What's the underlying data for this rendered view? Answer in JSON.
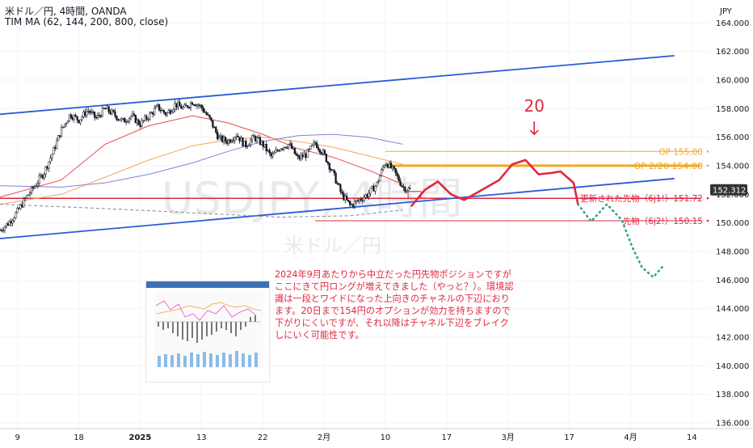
{
  "header": {
    "line1": "米ドル／円, 4時間, OANDA",
    "line2": "TIM MA (62, 144, 200, 800, close)"
  },
  "currency": "JPY",
  "watermark": {
    "symbol": "USDJPY, 4時間",
    "name": "米ドル／円"
  },
  "annotation_number": "20",
  "note_text": "2024年9月あたりから中立だった円先物ポジションですがここにきて円ロングが増えてきました（やっと？）。環境認識は一段とワイドになった上向きのチャネルの下辺におります。20日まで154円のオプションが効力を持ちますので下がりにくいですが、それ以降はチャネル下辺をブレイクしにいく可能性です。",
  "colors": {
    "candle": "#131722",
    "channel": "#2a5bd7",
    "red_line": "#e0293e",
    "orange_line": "#f5a623",
    "ma62": "#e84a4a",
    "ma144": "#f6a55a",
    "ma200": "#8a7ee0",
    "ma800": "#888888",
    "forecast_red": "#e0293e",
    "forecast_green": "#2aa584",
    "current_price_bg": "#333333"
  },
  "chart_data": {
    "type": "candlestick",
    "title": "米ドル／円, 4時間, OANDA",
    "ylim": [
      135.6,
      165.6
    ],
    "y_ticks": [
      "164.000",
      "162.000",
      "160.000",
      "158.000",
      "156.000",
      "154.000",
      "152.000",
      "150.000",
      "148.000",
      "146.000",
      "144.000",
      "142.000",
      "140.000",
      "138.000",
      "136.000"
    ],
    "x_ticks": [
      "9",
      "18",
      "2025",
      "13",
      "22",
      "2月",
      "10",
      "17",
      "3月",
      "17",
      "4月",
      "14"
    ],
    "x_tick_pos": [
      0,
      7,
      14,
      21,
      28,
      35,
      42,
      49,
      56,
      63,
      70,
      77
    ],
    "x_range": [
      -2,
      79
    ],
    "price_path": [
      [
        -2,
        149.5
      ],
      [
        -1,
        150.0
      ],
      [
        0,
        150.8
      ],
      [
        1,
        151.8
      ],
      [
        2,
        152.6
      ],
      [
        3,
        153.5
      ],
      [
        4,
        154.9
      ],
      [
        5,
        156.5
      ],
      [
        6,
        157.6
      ],
      [
        7,
        157.2
      ],
      [
        8,
        157.9
      ],
      [
        9,
        157.3
      ],
      [
        10,
        158.0
      ],
      [
        11,
        157.6
      ],
      [
        12,
        157.1
      ],
      [
        13,
        157.5
      ],
      [
        14,
        156.9
      ],
      [
        15,
        157.5
      ],
      [
        16,
        158.1
      ],
      [
        17,
        157.6
      ],
      [
        18,
        158.3
      ],
      [
        19,
        158.0
      ],
      [
        20,
        158.5
      ],
      [
        21,
        158.1
      ],
      [
        22,
        157.2
      ],
      [
        23,
        155.9
      ],
      [
        24,
        155.7
      ],
      [
        25,
        156.2
      ],
      [
        26,
        155.4
      ],
      [
        27,
        156.0
      ],
      [
        28,
        155.5
      ],
      [
        29,
        154.6
      ],
      [
        30,
        155.3
      ],
      [
        31,
        155.5
      ],
      [
        32,
        154.5
      ],
      [
        33,
        154.8
      ],
      [
        34,
        155.6
      ],
      [
        35,
        154.8
      ],
      [
        36,
        153.5
      ],
      [
        37,
        152.0
      ],
      [
        38,
        151.2
      ],
      [
        39,
        151.6
      ],
      [
        40,
        152.0
      ],
      [
        41,
        152.7
      ],
      [
        42,
        154.3
      ],
      [
        43,
        153.6
      ],
      [
        44,
        152.5
      ],
      [
        44.8,
        152.3
      ]
    ],
    "current_price": "152.312",
    "channel_upper": [
      [
        -2,
        157.6
      ],
      [
        75,
        161.7
      ]
    ],
    "channel_lower": [
      [
        -2,
        148.9
      ],
      [
        75,
        153.1
      ]
    ],
    "horizontal_levels": [
      {
        "label": "OP 155.00",
        "value": 155.0,
        "x_start": 42,
        "x_end": 78,
        "color": "#f5a623",
        "width": 1
      },
      {
        "label": "OP 2/20 154.00",
        "value": 154.0,
        "x_start": 42,
        "x_end": 78,
        "color": "#f5a623",
        "width": 3
      },
      {
        "label": "更新された先物（6j1!）151.72",
        "value": 151.72,
        "x_start": -2,
        "x_end": 78,
        "color": "#e0293e",
        "width": 1.5
      },
      {
        "label": "先物（6j2!）150.15",
        "value": 150.15,
        "x_start": 34,
        "x_end": 78,
        "color": "#e0293e",
        "width": 1
      }
    ],
    "moving_averages": [
      {
        "name": "MA62",
        "color": "#e84a4a",
        "points": [
          [
            -2,
            151.8
          ],
          [
            5,
            153.0
          ],
          [
            10,
            155.5
          ],
          [
            15,
            156.8
          ],
          [
            20,
            157.5
          ],
          [
            24,
            157.0
          ],
          [
            28,
            156.2
          ],
          [
            32,
            155.2
          ],
          [
            36,
            154.6
          ],
          [
            40,
            153.7
          ],
          [
            44,
            152.7
          ]
        ]
      },
      {
        "name": "MA144",
        "color": "#f6a55a",
        "points": [
          [
            -2,
            151.3
          ],
          [
            5,
            152.0
          ],
          [
            10,
            153.2
          ],
          [
            15,
            154.4
          ],
          [
            20,
            155.4
          ],
          [
            24,
            155.8
          ],
          [
            28,
            156.0
          ],
          [
            32,
            155.7
          ],
          [
            36,
            155.3
          ],
          [
            40,
            154.7
          ],
          [
            44,
            154.1
          ]
        ]
      },
      {
        "name": "MA200",
        "color": "#8a7ee0",
        "points": [
          [
            -2,
            152.6
          ],
          [
            5,
            152.5
          ],
          [
            10,
            152.8
          ],
          [
            15,
            153.4
          ],
          [
            20,
            154.2
          ],
          [
            24,
            155.0
          ],
          [
            28,
            155.7
          ],
          [
            32,
            156.1
          ],
          [
            36,
            156.2
          ],
          [
            40,
            156.0
          ],
          [
            44,
            155.5
          ]
        ]
      },
      {
        "name": "MA800",
        "color": "#888888",
        "dashed": true,
        "points": [
          [
            -2,
            151.3
          ],
          [
            10,
            151.0
          ],
          [
            20,
            150.7
          ],
          [
            30,
            150.4
          ],
          [
            38,
            150.5
          ],
          [
            44,
            150.9
          ]
        ]
      }
    ],
    "forecast_red": [
      [
        45,
        151.2
      ],
      [
        46.5,
        152.3
      ],
      [
        48,
        152.9
      ],
      [
        49.5,
        152.0
      ],
      [
        51,
        151.6
      ],
      [
        53,
        152.3
      ],
      [
        55,
        153.0
      ],
      [
        56.5,
        154.1
      ],
      [
        58,
        154.4
      ],
      [
        59.5,
        153.4
      ],
      [
        61,
        153.5
      ],
      [
        62,
        153.6
      ],
      [
        63.5,
        152.8
      ],
      [
        64,
        151.3
      ]
    ],
    "forecast_green": [
      [
        64,
        151.3
      ],
      [
        65.5,
        150.1
      ],
      [
        67.3,
        151.3
      ],
      [
        69,
        150.2
      ],
      [
        70.2,
        148.3
      ],
      [
        71.3,
        146.9
      ],
      [
        72.6,
        146.2
      ],
      [
        73.6,
        146.9
      ]
    ],
    "annotation_x": 59,
    "annotation_value": 156.2
  }
}
